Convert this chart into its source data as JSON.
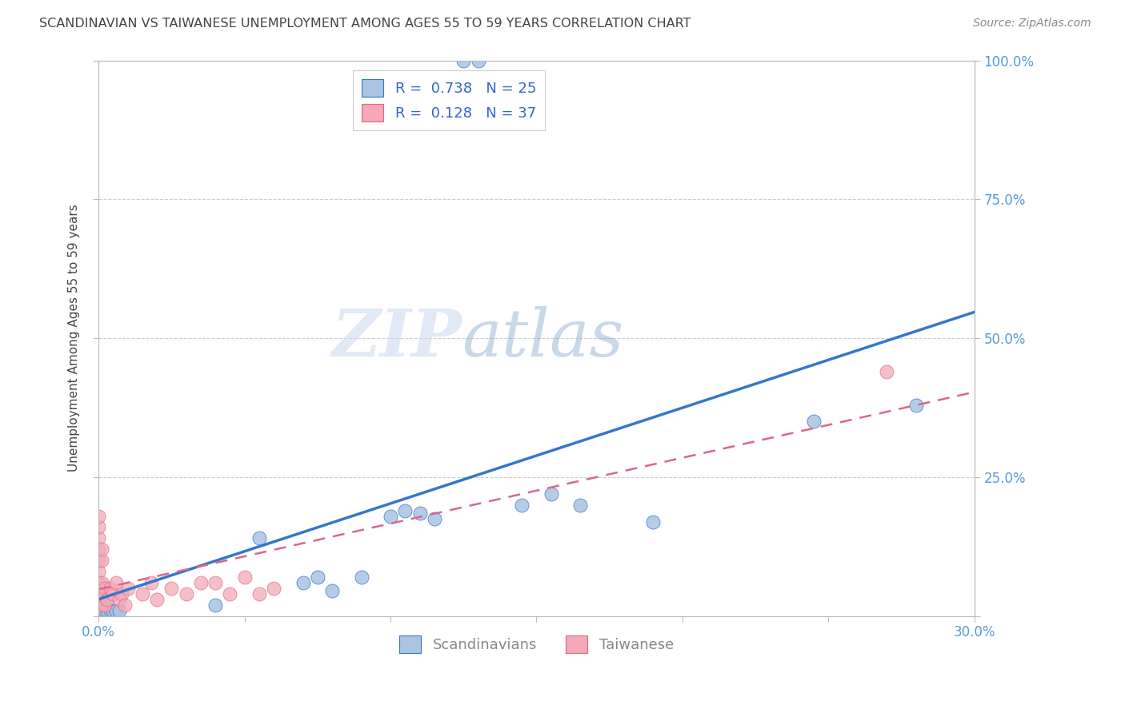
{
  "title": "SCANDINAVIAN VS TAIWANESE UNEMPLOYMENT AMONG AGES 55 TO 59 YEARS CORRELATION CHART",
  "source": "Source: ZipAtlas.com",
  "ylabel_label": "Unemployment Among Ages 55 to 59 years",
  "xlim": [
    0.0,
    0.3
  ],
  "ylim": [
    0.0,
    1.0
  ],
  "scandinavian_color": "#aac4e2",
  "taiwanese_color": "#f4a8b8",
  "scand_line_color": "#3377cc",
  "taiwan_line_color": "#dd6688",
  "scand_R": 0.738,
  "scand_N": 25,
  "taiwan_R": 0.128,
  "taiwan_N": 37,
  "legend_label_scand": "Scandinavians",
  "legend_label_taiwan": "Taiwanese",
  "watermark_zip": "ZIP",
  "watermark_atlas": "atlas",
  "scandinavian_x": [
    0.001,
    0.002,
    0.003,
    0.004,
    0.005,
    0.006,
    0.007,
    0.04,
    0.055,
    0.07,
    0.075,
    0.08,
    0.09,
    0.1,
    0.105,
    0.11,
    0.115,
    0.125,
    0.13,
    0.145,
    0.155,
    0.165,
    0.19,
    0.245,
    0.28
  ],
  "scandinavian_y": [
    0.01,
    0.01,
    0.01,
    0.01,
    0.01,
    0.01,
    0.01,
    0.02,
    0.14,
    0.06,
    0.07,
    0.045,
    0.07,
    0.18,
    0.19,
    0.185,
    0.175,
    1.0,
    1.0,
    0.2,
    0.22,
    0.2,
    0.17,
    0.35,
    0.38
  ],
  "taiwanese_x": [
    0.0,
    0.0,
    0.0,
    0.0,
    0.0,
    0.0,
    0.0,
    0.0,
    0.0,
    0.0,
    0.001,
    0.001,
    0.001,
    0.001,
    0.001,
    0.002,
    0.002,
    0.003,
    0.004,
    0.005,
    0.006,
    0.007,
    0.008,
    0.009,
    0.01,
    0.015,
    0.018,
    0.02,
    0.025,
    0.03,
    0.035,
    0.04,
    0.045,
    0.05,
    0.055,
    0.06,
    0.27
  ],
  "taiwanese_y": [
    0.02,
    0.03,
    0.04,
    0.06,
    0.08,
    0.1,
    0.12,
    0.14,
    0.16,
    0.18,
    0.02,
    0.04,
    0.06,
    0.1,
    0.12,
    0.02,
    0.05,
    0.03,
    0.05,
    0.04,
    0.06,
    0.03,
    0.04,
    0.02,
    0.05,
    0.04,
    0.06,
    0.03,
    0.05,
    0.04,
    0.06,
    0.06,
    0.04,
    0.07,
    0.04,
    0.05,
    0.44
  ],
  "grid_color": "#cccccc",
  "background_color": "#ffffff",
  "title_color": "#444444",
  "axis_tick_color": "#5599dd",
  "legend_text_color": "#3366cc"
}
